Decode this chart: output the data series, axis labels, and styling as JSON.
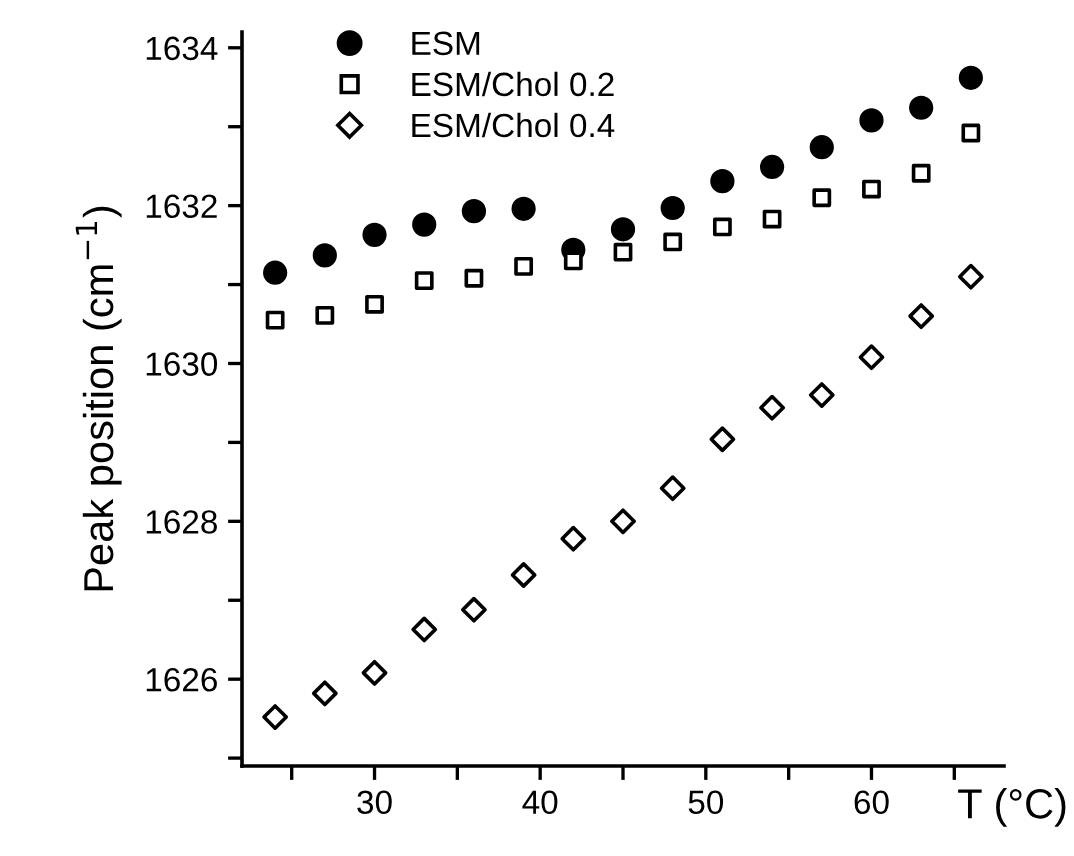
{
  "chart_data": {
    "type": "scatter",
    "xlabel": "T (°C)",
    "ylabel": "Peak position (cm$^{−1}$)",
    "x": [
      24,
      27,
      30,
      33,
      36,
      39,
      42,
      45,
      48,
      51,
      54,
      57,
      60,
      63,
      66
    ],
    "series": [
      {
        "name": "ESM",
        "color": "#000000",
        "marker": "circle",
        "values": [
          1631.15,
          1631.37,
          1631.63,
          1631.76,
          1631.93,
          1631.96,
          1631.44,
          1631.7,
          1631.97,
          1632.31,
          1632.49,
          1632.74,
          1633.08,
          1633.24,
          1633.62
        ]
      },
      {
        "name": "ESM/Chol 0.2",
        "color": "#000000",
        "marker": "square",
        "values": [
          1630.55,
          1630.61,
          1630.75,
          1631.05,
          1631.08,
          1631.23,
          1631.3,
          1631.41,
          1631.54,
          1631.73,
          1631.83,
          1632.1,
          1632.21,
          1632.41,
          1632.92
        ]
      },
      {
        "name": "ESM/Chol 0.4",
        "color": "#000000",
        "marker": "diamond",
        "values": [
          1625.52,
          1625.82,
          1626.08,
          1626.63,
          1626.88,
          1627.32,
          1627.78,
          1628.0,
          1628.42,
          1629.04,
          1629.44,
          1629.6,
          1630.08,
          1630.6,
          1631.1
        ]
      }
    ],
    "xlim": [
      22,
      68
    ],
    "ylim": [
      1624.9,
      1634.2
    ],
    "xticks": [
      {
        "value": 25,
        "label": null
      },
      30,
      {
        "value": 35,
        "label": null
      },
      40,
      {
        "value": 45,
        "label": null
      },
      50,
      {
        "value": 55,
        "label": null
      },
      60,
      {
        "value": 65,
        "label": null
      }
    ],
    "yticks": [
      {
        "value": 1625,
        "label": null
      },
      1626,
      {
        "value": 1627,
        "label": null
      },
      1628,
      {
        "value": 1629,
        "label": null
      },
      1630,
      {
        "value": 1631,
        "label": null
      },
      1632,
      {
        "value": 1633,
        "label": null
      },
      1634
    ],
    "grid": false,
    "legend": "top left"
  }
}
